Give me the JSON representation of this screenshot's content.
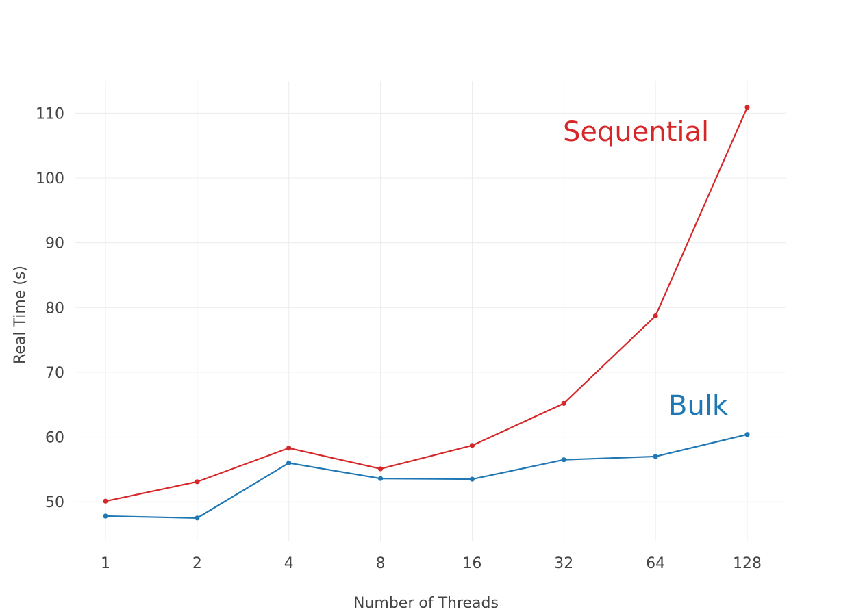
{
  "chart_data": {
    "type": "line",
    "x_scale": "log2",
    "x": [
      1,
      2,
      4,
      8,
      16,
      32,
      64,
      128
    ],
    "x_tick_labels": [
      "1",
      "2",
      "4",
      "8",
      "16",
      "32",
      "64",
      "128"
    ],
    "y_ticks": [
      50,
      60,
      70,
      80,
      90,
      100,
      110
    ],
    "y_tick_labels": [
      "50",
      "60",
      "70",
      "80",
      "90",
      "100",
      "110"
    ],
    "ylim": [
      44,
      115
    ],
    "xlabel": "Number of Threads",
    "ylabel": "Real Time (s)",
    "grid": true,
    "series": [
      {
        "name": "Sequential",
        "color": "#d62728",
        "values": [
          50.1,
          53.1,
          58.3,
          55.1,
          58.7,
          65.2,
          78.7,
          110.9
        ]
      },
      {
        "name": "Bulk",
        "color": "#1f77b4",
        "values": [
          47.8,
          47.5,
          56.0,
          53.6,
          53.5,
          56.5,
          57.0,
          60.4
        ]
      }
    ],
    "annotations": [
      {
        "text": "Sequential",
        "color": "#d62728"
      },
      {
        "text": "Bulk",
        "color": "#1f77b4"
      }
    ]
  }
}
